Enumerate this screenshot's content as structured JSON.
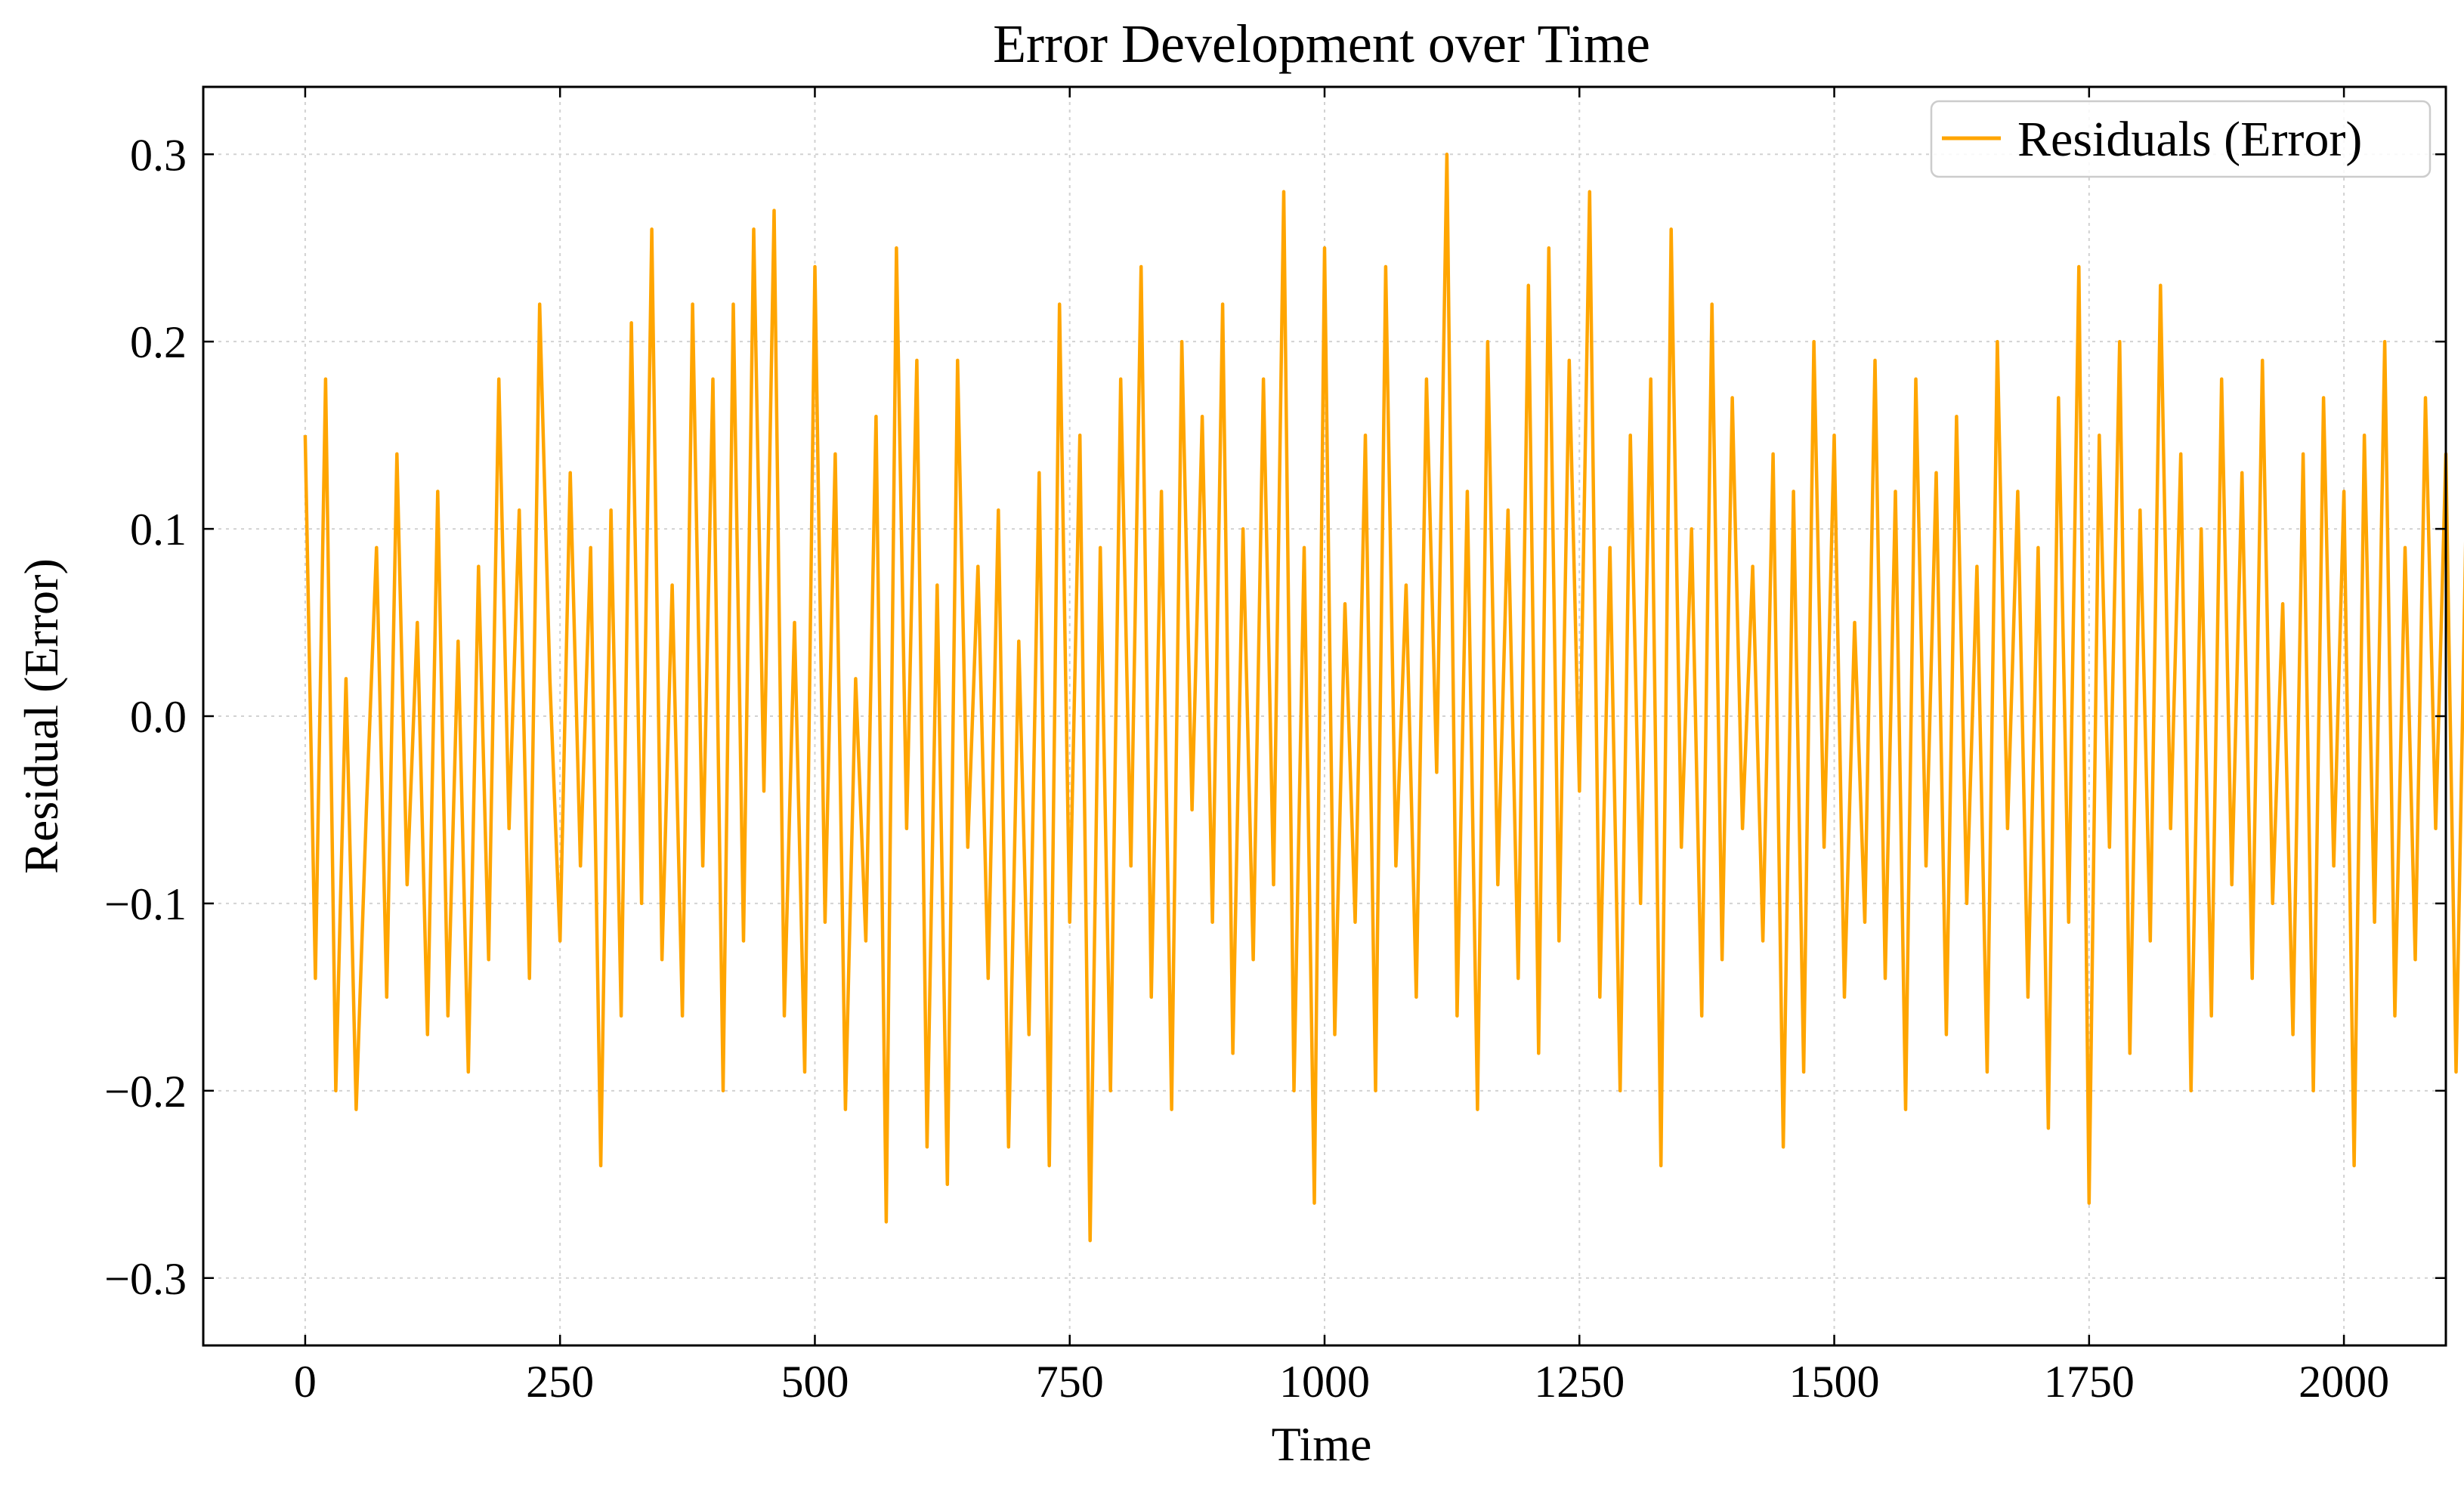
{
  "chart_data": {
    "type": "line",
    "title": "Error Development over Time",
    "xlabel": "Time",
    "ylabel": "Residual (Error)",
    "xlim": [
      -100,
      2100
    ],
    "ylim": [
      -0.336,
      0.336
    ],
    "xticks": [
      0,
      250,
      500,
      750,
      1000,
      1250,
      1500,
      1750,
      2000
    ],
    "yticks": [
      0.3,
      0.2,
      0.1,
      0.0,
      -0.1,
      -0.2,
      -0.3
    ],
    "xtick_labels": [
      "0",
      "250",
      "500",
      "750",
      "1000",
      "1250",
      "1500",
      "1750",
      "2000"
    ],
    "ytick_labels": [
      "0.3",
      "0.2",
      "0.1",
      "0.0",
      "−0.1",
      "−0.2",
      "−0.3"
    ],
    "grid": true,
    "legend_position": "top-right",
    "series": [
      {
        "name": "Residuals (Error)",
        "color": "#FFA500",
        "x_start": 0,
        "x_step": 10,
        "values": [
          0.15,
          -0.14,
          0.18,
          -0.2,
          0.02,
          -0.21,
          -0.05,
          0.09,
          -0.15,
          0.14,
          -0.09,
          0.05,
          -0.17,
          0.12,
          -0.16,
          0.04,
          -0.19,
          0.08,
          -0.13,
          0.18,
          -0.06,
          0.11,
          -0.14,
          0.22,
          0.02,
          -0.12,
          0.13,
          -0.08,
          0.09,
          -0.24,
          0.11,
          -0.16,
          0.21,
          -0.1,
          0.26,
          -0.13,
          0.07,
          -0.16,
          0.22,
          -0.08,
          0.18,
          -0.2,
          0.22,
          -0.12,
          0.26,
          -0.04,
          0.27,
          -0.16,
          0.05,
          -0.19,
          0.24,
          -0.11,
          0.14,
          -0.21,
          0.02,
          -0.12,
          0.16,
          -0.27,
          0.25,
          -0.06,
          0.19,
          -0.23,
          0.07,
          -0.25,
          0.19,
          -0.07,
          0.08,
          -0.14,
          0.11,
          -0.23,
          0.04,
          -0.17,
          0.13,
          -0.24,
          0.22,
          -0.11,
          0.15,
          -0.28,
          0.09,
          -0.2,
          0.18,
          -0.08,
          0.24,
          -0.15,
          0.12,
          -0.21,
          0.2,
          -0.05,
          0.16,
          -0.11,
          0.22,
          -0.18,
          0.1,
          -0.13,
          0.18,
          -0.09,
          0.28,
          -0.2,
          0.09,
          -0.26,
          0.25,
          -0.17,
          0.06,
          -0.11,
          0.15,
          -0.2,
          0.24,
          -0.08,
          0.07,
          -0.15,
          0.18,
          -0.03,
          0.3,
          -0.16,
          0.12,
          -0.21,
          0.2,
          -0.09,
          0.11,
          -0.14,
          0.23,
          -0.18,
          0.25,
          -0.12,
          0.19,
          -0.04,
          0.28,
          -0.15,
          0.09,
          -0.2,
          0.15,
          -0.1,
          0.18,
          -0.24,
          0.26,
          -0.07,
          0.1,
          -0.16,
          0.22,
          -0.13,
          0.17,
          -0.06,
          0.08,
          -0.12,
          0.14,
          -0.23,
          0.12,
          -0.19,
          0.2,
          -0.07,
          0.15,
          -0.15,
          0.05,
          -0.11,
          0.19,
          -0.14,
          0.12,
          -0.21,
          0.18,
          -0.08,
          0.13,
          -0.17,
          0.16,
          -0.1,
          0.08,
          -0.19,
          0.2,
          -0.06,
          0.12,
          -0.15,
          0.09,
          -0.22,
          0.17,
          -0.11,
          0.24,
          -0.26,
          0.15,
          -0.07,
          0.2,
          -0.18,
          0.11,
          -0.12,
          0.23,
          -0.06,
          0.14,
          -0.2,
          0.1,
          -0.16,
          0.18,
          -0.09,
          0.13,
          -0.14,
          0.19,
          -0.1,
          0.06,
          -0.17,
          0.14,
          -0.2,
          0.17,
          -0.08,
          0.12,
          -0.24,
          0.15,
          -0.11,
          0.2,
          -0.16,
          0.09,
          -0.13,
          0.17,
          -0.06,
          0.14,
          -0.19,
          0.11,
          -0.21,
          0.18,
          -0.09,
          0.13,
          -0.15,
          0.16,
          -0.2,
          0.12,
          -0.1,
          0.19,
          -0.13,
          0.08,
          -0.17,
          0.2,
          -0.07,
          0.15,
          -0.14,
          0.1,
          -0.22,
          0.17,
          -0.09,
          0.13,
          -0.16,
          0.2,
          -0.12,
          0.09,
          -0.18,
          0.15,
          -0.24,
          0.21,
          -0.11,
          0.19,
          -0.17,
          0.12,
          -0.2,
          0.21,
          -0.08,
          0.22,
          -0.14,
          0.17,
          -0.23,
          0.15,
          -0.09,
          0.12,
          -0.31,
          0.19,
          -0.22,
          0.2,
          -0.13,
          0.14,
          -0.18,
          0.2,
          -0.1,
          0.16,
          -0.21,
          0.23,
          -0.07,
          0.15,
          -0.16,
          0.19,
          -0.12,
          0.1,
          -0.2,
          0.17,
          -0.15,
          0.25,
          -0.09,
          0.14,
          -0.27,
          0.22,
          -0.13,
          0.26,
          -0.18,
          0.21,
          -0.1,
          0.16,
          -0.2,
          0.15,
          -0.24,
          0.13,
          -0.11,
          0.19,
          -0.16,
          0.12,
          -0.21,
          0.17,
          -0.09,
          0.29,
          -0.18,
          0.2,
          -0.13,
          0.27,
          -0.2,
          0.19,
          -0.15,
          0.13,
          -0.22,
          0.11,
          -0.25,
          0.15,
          -0.12,
          0.09,
          -0.2,
          0.17,
          -0.14,
          0.12,
          -0.24,
          0.19,
          -0.1,
          0.15,
          -0.17,
          0.2,
          -0.14,
          0.12,
          -0.23,
          0.19,
          -0.1,
          0.16,
          -0.15,
          0.09,
          -0.13,
          0.18,
          -0.08,
          0.02,
          0.16,
          0.05
        ]
      }
    ]
  }
}
